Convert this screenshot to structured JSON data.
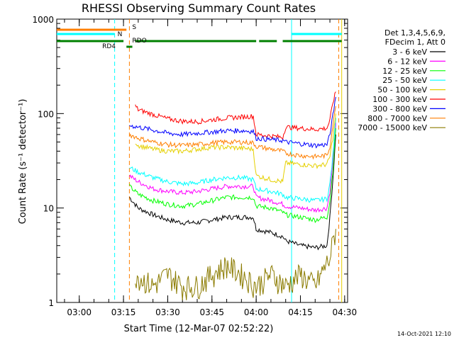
{
  "chart_data": {
    "type": "line",
    "title": "RHESSI Observing Summary Count Rates",
    "xlabel": "Start Time (12-Mar-07 02:52:22)",
    "ylabel": "Count Rate (s⁻¹ detector⁻¹)",
    "y_scale": "log",
    "ylim": [
      1,
      1000
    ],
    "xlim": [
      "02:52:22",
      "04:31:00"
    ],
    "x_ticks": [
      "03:00",
      "03:15",
      "03:30",
      "03:45",
      "04:00",
      "04:15",
      "04:30"
    ],
    "y_ticks": [
      "1",
      "10",
      "100",
      "1000"
    ],
    "legend_title": [
      "Det 1,3,4,5,6,9,",
      "FDecim 1, Att 0"
    ],
    "legend_position": "right",
    "timestamp": "14-Oct-2021 12:10",
    "series": [
      {
        "name": "3 - 6 keV",
        "color": "#000000",
        "x": [
          "03:17",
          "03:20",
          "03:25",
          "03:30",
          "03:35",
          "03:40",
          "03:45",
          "03:50",
          "03:55",
          "03:59",
          "04:00",
          "04:05",
          "04:09",
          "04:10",
          "04:15",
          "04:20",
          "04:24",
          "04:25",
          "04:26",
          "04:27"
        ],
        "y": [
          13,
          10,
          8.5,
          7.5,
          7,
          7,
          7.5,
          8,
          8,
          8,
          6,
          5.5,
          5,
          4.5,
          4,
          3.8,
          4,
          8,
          20,
          60
        ]
      },
      {
        "name": "6 - 12 keV",
        "color": "#ff00ff",
        "x": [
          "03:17",
          "03:20",
          "03:25",
          "03:30",
          "03:35",
          "03:40",
          "03:45",
          "03:50",
          "03:55",
          "03:59",
          "04:00",
          "04:05",
          "04:09",
          "04:10",
          "04:15",
          "04:20",
          "04:24",
          "04:25",
          "04:26",
          "04:27"
        ],
        "y": [
          22,
          19,
          16,
          15,
          14.5,
          15,
          16,
          17,
          17,
          17,
          13,
          12,
          11,
          10.5,
          10,
          9.5,
          10,
          15,
          30,
          80
        ]
      },
      {
        "name": "12 - 25 keV",
        "color": "#00ff00",
        "x": [
          "03:17",
          "03:20",
          "03:25",
          "03:30",
          "03:35",
          "03:40",
          "03:45",
          "03:50",
          "03:55",
          "03:59",
          "04:00",
          "04:05",
          "04:09",
          "04:10",
          "04:15",
          "04:20",
          "04:24",
          "04:25",
          "04:26",
          "04:27"
        ],
        "y": [
          17,
          14,
          12,
          11,
          10.5,
          11,
          12,
          13,
          13,
          13,
          10.5,
          10,
          9,
          8.5,
          8,
          7.5,
          8,
          12,
          25,
          70
        ]
      },
      {
        "name": "25 - 50 keV",
        "color": "#00ffff",
        "x": [
          "03:17",
          "03:20",
          "03:25",
          "03:30",
          "03:35",
          "03:40",
          "03:45",
          "03:50",
          "03:55",
          "03:59",
          "04:00",
          "04:05",
          "04:09",
          "04:10",
          "04:15",
          "04:20",
          "04:24",
          "04:25",
          "04:26",
          "04:27"
        ],
        "y": [
          27,
          24,
          21,
          19,
          18,
          18.5,
          20,
          21,
          21,
          20,
          16,
          15,
          14,
          13,
          12.5,
          12,
          12.5,
          18,
          35,
          90
        ]
      },
      {
        "name": "50 - 100 keV",
        "color": "#e5d000",
        "x": [
          "03:19",
          "03:20",
          "03:25",
          "03:30",
          "03:35",
          "03:40",
          "03:45",
          "03:50",
          "03:55",
          "03:59",
          "04:00",
          "04:05",
          "04:09",
          "04:10",
          "04:15",
          "04:20",
          "04:24",
          "04:25",
          "04:26",
          "04:27"
        ],
        "y": [
          50,
          46,
          42,
          40,
          40,
          42,
          44,
          44,
          43,
          42,
          22,
          20,
          19,
          30,
          29,
          28,
          29,
          35,
          55,
          100
        ]
      },
      {
        "name": "100 - 300 keV",
        "color": "#ff0000",
        "x": [
          "03:19",
          "03:20",
          "03:25",
          "03:30",
          "03:35",
          "03:40",
          "03:45",
          "03:50",
          "03:55",
          "03:59",
          "04:00",
          "04:05",
          "04:09",
          "04:10",
          "04:15",
          "04:20",
          "04:24",
          "04:25",
          "04:26",
          "04:27"
        ],
        "y": [
          120,
          110,
          98,
          88,
          83,
          82,
          86,
          90,
          92,
          94,
          60,
          58,
          56,
          72,
          70,
          68,
          70,
          85,
          130,
          170
        ]
      },
      {
        "name": "300 - 800 keV",
        "color": "#0000ff",
        "x": [
          "03:17",
          "03:20",
          "03:25",
          "03:30",
          "03:35",
          "03:40",
          "03:45",
          "03:50",
          "03:55",
          "03:59",
          "04:00",
          "04:05",
          "04:09",
          "04:10",
          "04:15",
          "04:20",
          "04:24",
          "04:25",
          "04:26",
          "04:27"
        ],
        "y": [
          75,
          72,
          67,
          62,
          60,
          62,
          64,
          66,
          66,
          65,
          55,
          53,
          52,
          50,
          48,
          46,
          47,
          60,
          95,
          150
        ]
      },
      {
        "name": "800 - 7000 keV",
        "color": "#ff7f00",
        "x": [
          "03:17",
          "03:20",
          "03:25",
          "03:30",
          "03:35",
          "03:40",
          "03:45",
          "03:50",
          "03:55",
          "03:59",
          "04:00",
          "04:05",
          "04:09",
          "04:10",
          "04:15",
          "04:20",
          "04:24",
          "04:25",
          "04:26",
          "04:27"
        ],
        "y": [
          60,
          55,
          50,
          47,
          46,
          47,
          49,
          50,
          50,
          49,
          45,
          42,
          40,
          38,
          36,
          35,
          36,
          45,
          75,
          120
        ]
      },
      {
        "name": "7000 - 15000 keV",
        "color": "#8b7b00",
        "x": [
          "03:19",
          "03:25",
          "03:30",
          "03:35",
          "03:40",
          "03:45",
          "03:50",
          "03:55",
          "04:00",
          "04:05",
          "04:10",
          "04:15",
          "04:20",
          "04:25",
          "04:27"
        ],
        "y": [
          2,
          1.5,
          2,
          1.5,
          1.5,
          2,
          2.5,
          2,
          1.5,
          2,
          1.5,
          2,
          1.5,
          3,
          6
        ]
      }
    ],
    "flags": [
      {
        "label": "S",
        "color": "#ff7f00",
        "segments": [
          [
            "02:52:22",
            "03:16"
          ]
        ]
      },
      {
        "label": "N",
        "color": "#00ffff",
        "segments": [
          [
            "02:52:22",
            "03:12"
          ],
          [
            "04:12",
            "04:29"
          ]
        ]
      },
      {
        "label": "RD4",
        "color": "#008000",
        "segments": [
          [
            "03:16",
            "03:18"
          ]
        ]
      },
      {
        "label": "RDO",
        "color": "#008000",
        "segments": [
          [
            "02:52:22",
            "03:15"
          ],
          [
            "03:19",
            "04:00"
          ],
          [
            "04:01",
            "04:07"
          ],
          [
            "04:09",
            "04:29"
          ]
        ]
      }
    ],
    "vlines": [
      {
        "time": "03:12",
        "color": "#00ffff",
        "style": "dashed"
      },
      {
        "time": "03:17",
        "color": "#ff7f00",
        "style": "dashed"
      },
      {
        "time": "04:12",
        "color": "#00ffff",
        "style": "solid"
      },
      {
        "time": "04:28",
        "color": "#ff7f00",
        "style": "dashed"
      },
      {
        "time": "04:29",
        "color": "#e5d000",
        "style": "solid"
      }
    ]
  }
}
